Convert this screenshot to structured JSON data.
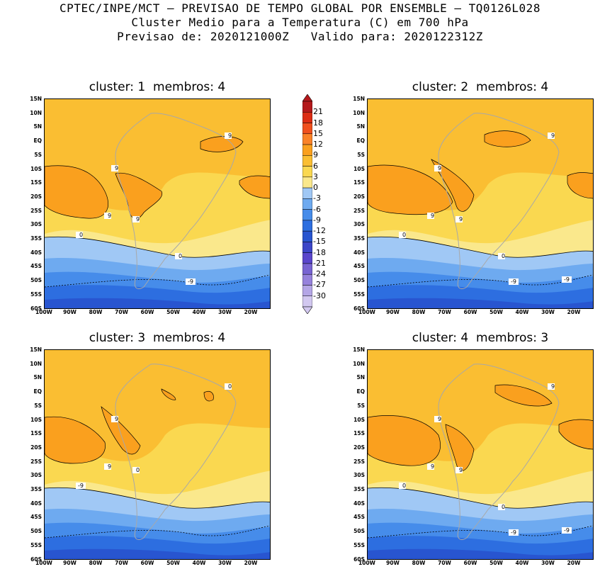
{
  "header": {
    "line1": "CPTEC/INPE/MCT — PREVISAO DE TEMPO GLOBAL POR ENSEMBLE — TQ0126L028",
    "line2": "Cluster Medio para a Temperatura (C) em 700 hPa",
    "line3": "Previsao de: 2020121000Z   Valido para: 2020122312Z"
  },
  "panels": [
    {
      "title": "cluster: 1  membros: 4"
    },
    {
      "title": "cluster: 2  membros: 4"
    },
    {
      "title": "cluster: 3  membros: 4"
    },
    {
      "title": "cluster: 4  membros: 3"
    }
  ],
  "axes": {
    "lat_labels": [
      "15N",
      "10N",
      "5N",
      "EQ",
      "5S",
      "10S",
      "15S",
      "20S",
      "25S",
      "30S",
      "35S",
      "40S",
      "45S",
      "50S",
      "55S",
      "60S"
    ],
    "lon_labels": [
      "100W",
      "90W",
      "80W",
      "70W",
      "60W",
      "50W",
      "40W",
      "30W",
      "20W"
    ]
  },
  "colorbar": {
    "levels": [
      "21",
      "18",
      "15",
      "12",
      "9",
      "6",
      "3",
      "0",
      "-3",
      "-6",
      "-9",
      "-12",
      "-15",
      "-18",
      "-21",
      "-24",
      "-27",
      "-30"
    ],
    "colors": [
      "#b4191b",
      "#dc2d14",
      "#f0501e",
      "#fa8228",
      "#faa01e",
      "#fabe32",
      "#fad850",
      "#fae88c",
      "#a0c8f5",
      "#6eaaf0",
      "#468cea",
      "#2d6ee0",
      "#2855d0",
      "#3c46c8",
      "#5a46cc",
      "#7864d2",
      "#9682dc",
      "#b4a6e6",
      "#d2c8f0"
    ]
  },
  "contour_labels": {
    "p1": [
      "9",
      "9",
      "9",
      "9",
      "0",
      "0",
      "-9"
    ],
    "p2": [
      "9",
      "9",
      "9",
      "9",
      "0",
      "0",
      "-9",
      "-9"
    ],
    "p3": [
      "9",
      "9",
      "0",
      "0",
      "-9"
    ],
    "p4": [
      "9",
      "9",
      "9",
      "9",
      "0",
      "0",
      "-9",
      "-9"
    ]
  }
}
